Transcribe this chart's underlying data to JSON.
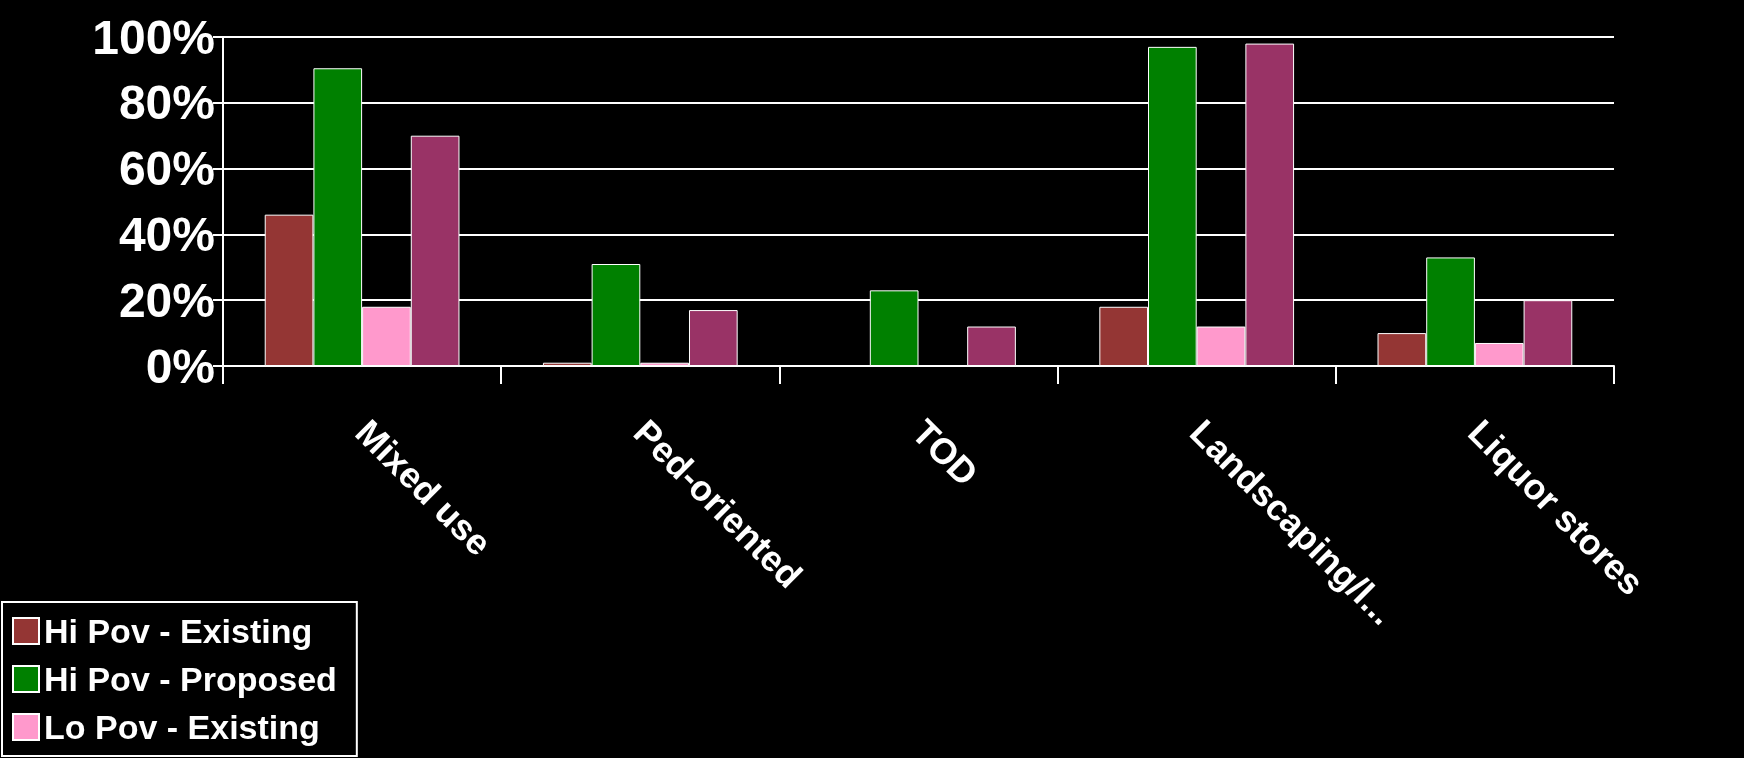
{
  "chart_data": {
    "type": "bar",
    "categories": [
      "Mixed use",
      "Ped-oriented",
      "TOD",
      "Landscaping/l...",
      "Liquor stores"
    ],
    "series": [
      {
        "name": "Hi Pov - Existing",
        "color": "#943634",
        "values": [
          46,
          1,
          0,
          18,
          10
        ]
      },
      {
        "name": "Hi Pov - Proposed",
        "color": "#008000",
        "values": [
          90.5,
          31,
          23,
          97,
          33
        ]
      },
      {
        "name": "Lo Pov - Existing",
        "color": "#ff99cc",
        "values": [
          18,
          1,
          0,
          12,
          7
        ]
      },
      {
        "color": "#993366",
        "values": [
          70,
          17,
          12,
          98,
          20
        ]
      }
    ],
    "ylim": [
      0,
      100
    ],
    "yticks": [
      {
        "value": 0,
        "label": "0%"
      },
      {
        "value": 20,
        "label": "20%"
      },
      {
        "value": 40,
        "label": "40%"
      },
      {
        "value": 60,
        "label": "60%"
      },
      {
        "value": 80,
        "label": "80%"
      },
      {
        "value": 100,
        "label": "100%"
      }
    ],
    "grid": "y",
    "legend": "bottom left"
  }
}
